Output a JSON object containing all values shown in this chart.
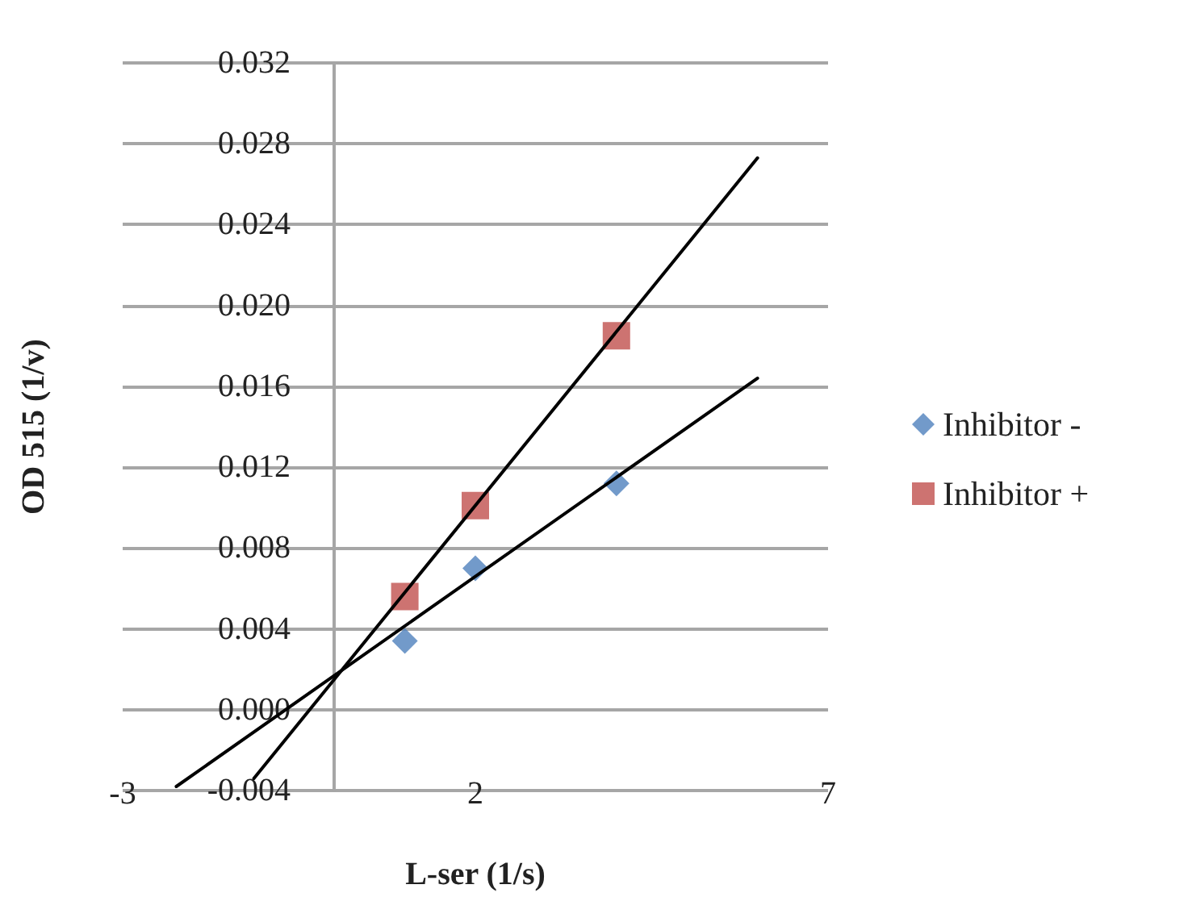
{
  "chart_data": {
    "type": "scatter",
    "xlabel": "L-ser (1/s)",
    "ylabel": "OD 515 (1/v)",
    "xlim": [
      -3,
      7
    ],
    "xticks": [
      -3,
      2,
      7
    ],
    "ylim": [
      -0.004,
      0.032
    ],
    "yticks": [
      -0.004,
      {
        "value": 0,
        "label": "0.000"
      },
      0.004,
      0.008,
      0.012,
      0.016,
      {
        "value": 0.02,
        "label": "0.020"
      },
      0.024,
      0.028,
      0.032
    ],
    "grid": "y",
    "legend": "right",
    "series": [
      {
        "name": "Inhibitor -",
        "color": "#4f81bd",
        "marker": "diamond",
        "x": [
          1,
          2,
          4
        ],
        "values": [
          0.0034,
          0.007,
          0.0112
        ]
      },
      {
        "name": "Inhibitor +",
        "color": "#c0504d",
        "marker": "square",
        "x": [
          1,
          2,
          4
        ],
        "values": [
          0.0056,
          0.0101,
          0.0185
        ]
      },
      {
        "type": "line",
        "color": "#000000",
        "marker": "none",
        "x": [
          -2.24,
          6.0
        ],
        "values": [
          -0.0038,
          0.0164
        ]
      },
      {
        "type": "line",
        "color": "#000000",
        "marker": "none",
        "x": [
          -1.14,
          6.0
        ],
        "values": [
          -0.0034,
          0.0273
        ]
      }
    ]
  }
}
